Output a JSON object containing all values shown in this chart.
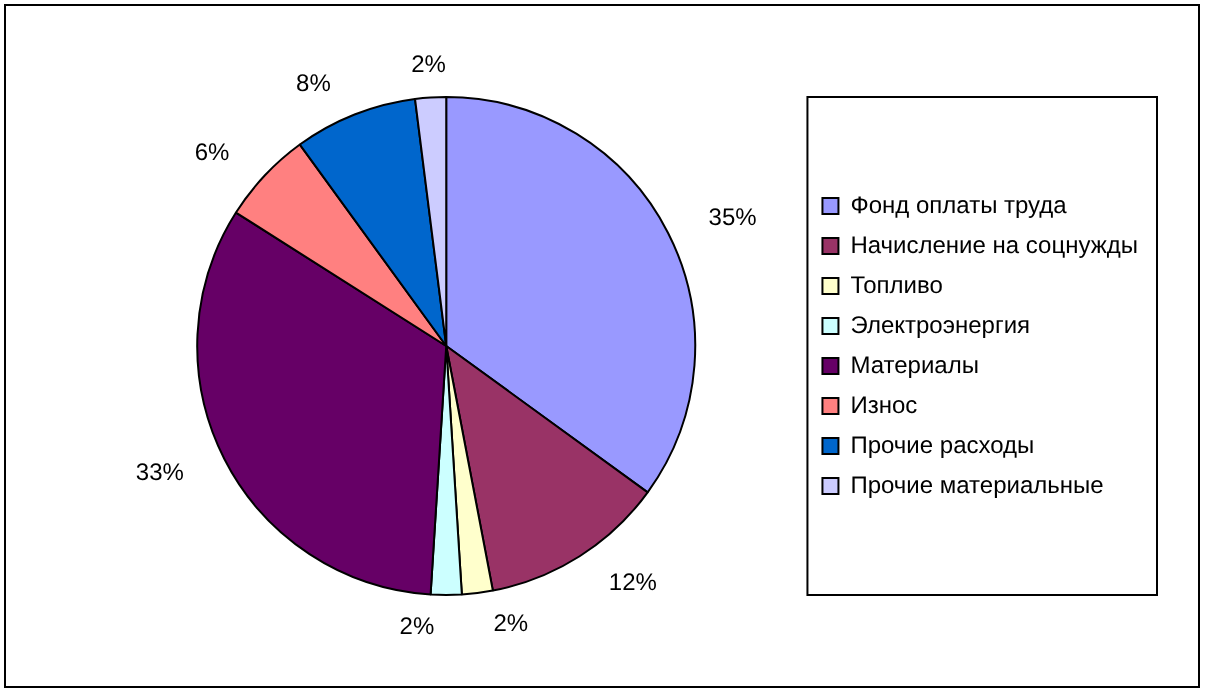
{
  "chart_data": {
    "type": "pie",
    "categories": [
      "Фонд оплаты труда",
      "Начисление на соцнужды",
      "Топливо",
      "Электроэнергия",
      "Материалы",
      "Износ",
      "Прочие расходы",
      "Прочие материальные"
    ],
    "values": [
      35,
      12,
      2,
      2,
      33,
      6,
      8,
      2
    ],
    "colors": [
      "#9999ff",
      "#993366",
      "#ffffcc",
      "#ccffff",
      "#660066",
      "#ff8080",
      "#0066cc",
      "#ccccff"
    ],
    "value_labels": [
      "35%",
      "12%",
      "2%",
      "2%",
      "33%",
      "6%",
      "8%",
      "2%"
    ],
    "legend": "right"
  }
}
